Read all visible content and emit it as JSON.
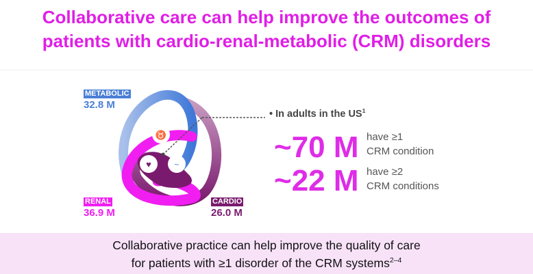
{
  "title": {
    "line1": "Collaborative care can help improve the outcomes of",
    "line2": "patients with cardio-renal-metabolic (CRM) disorders"
  },
  "diagram": {
    "metabolic": {
      "label": "METABOLIC",
      "value": "32.8 M",
      "color": "#4a7fd6"
    },
    "renal": {
      "label": "RENAL",
      "value": "36.9 M",
      "color": "#f01ef0"
    },
    "cardio": {
      "label": "CARDIO",
      "value": "26.0 M",
      "color": "#7a1a6e"
    },
    "icons": [
      "kidney-icon",
      "heart-icon",
      "pancreas-icon"
    ]
  },
  "stats": {
    "heading": "In adults in the US",
    "heading_ref": "1",
    "items": [
      {
        "value": "~70 M",
        "line1": "have ≥1",
        "line2": "CRM condition"
      },
      {
        "value": "~22 M",
        "line1": "have ≥2",
        "line2": "CRM conditions"
      }
    ]
  },
  "footer": {
    "line1": "Collaborative practice can help improve the quality of care",
    "line2": "for patients with ≥1 disorder of the CRM systems",
    "ref": "2–4"
  }
}
